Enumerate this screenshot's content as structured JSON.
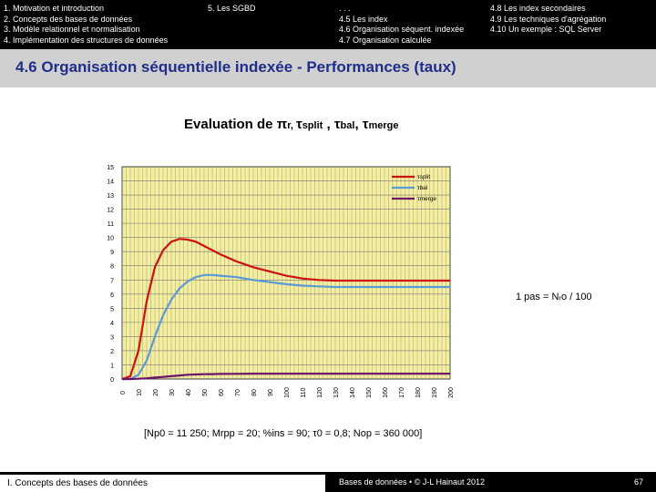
{
  "nav": {
    "left_items": [
      "1. Motivation et introduction",
      "2. Concepts des bases de données",
      "3. Modèle relationnel et normalisation",
      "4. Implémentation des structures de données"
    ],
    "sgbd_item": "5. Les SGBD",
    "right_col1": [
      ". . .",
      "4.5 Les index",
      "4.6 Organisation séquent. indexée",
      "4.7 Organisation calculée"
    ],
    "right_col2": [
      "4.8 Les index secondaires",
      "4.9 Les techniques d'agrégation",
      "4.10 Un exemple : SQL Server"
    ]
  },
  "page_title": "4.6 Organisation séquentielle indexée - Performances (taux)",
  "chart_title": {
    "prefix": "Evaluation de ",
    "pi": "π",
    "r": "r, ",
    "tau1": "τ",
    "split": "split",
    "comma2": " , ",
    "tau2": "τ",
    "bal": "bal",
    "comma3": ", ",
    "tau3": "τ",
    "merge": "merge"
  },
  "step_note": "1 pas = Nᵣo / 100",
  "params": "[Np0 = 11 250; Mrpp = 20; %ins = 90; τ0 = 0,8; Nop = 360 000]",
  "footer": {
    "left": "I. Concepts des bases de données",
    "middle": "Bases de données • © J-L Hainaut 2012",
    "page": "67"
  },
  "chart_data": {
    "type": "line",
    "x": [
      0,
      5,
      10,
      15,
      20,
      25,
      30,
      35,
      40,
      45,
      50,
      55,
      60,
      70,
      80,
      90,
      100,
      110,
      120,
      130,
      140,
      150,
      160,
      170,
      180,
      190,
      200
    ],
    "ylim": [
      0,
      15
    ],
    "xlim": [
      0,
      200
    ],
    "grid": true,
    "legend_position": "top-right",
    "x_ticks": [
      0,
      10,
      20,
      30,
      40,
      50,
      60,
      70,
      80,
      90,
      100,
      110,
      120,
      130,
      140,
      150,
      160,
      170,
      180,
      190,
      200
    ],
    "y_ticks": [
      0,
      1,
      2,
      3,
      4,
      5,
      6,
      7,
      8,
      9,
      10,
      11,
      12,
      13,
      14,
      15
    ],
    "series": [
      {
        "name": "τsplit",
        "color": "#cc1111",
        "values": [
          0,
          0.2,
          2.0,
          5.5,
          7.9,
          9.1,
          9.7,
          9.9,
          9.85,
          9.7,
          9.4,
          9.1,
          8.8,
          8.3,
          7.9,
          7.6,
          7.3,
          7.1,
          7.0,
          6.95,
          6.95,
          6.95,
          6.95,
          6.95,
          6.95,
          6.95,
          6.95
        ]
      },
      {
        "name": "τbal",
        "color": "#5a9ad6",
        "values": [
          0,
          0,
          0.3,
          1.3,
          3.0,
          4.5,
          5.6,
          6.4,
          6.9,
          7.2,
          7.35,
          7.35,
          7.3,
          7.2,
          7.0,
          6.85,
          6.7,
          6.6,
          6.55,
          6.5,
          6.5,
          6.5,
          6.5,
          6.5,
          6.5,
          6.5,
          6.5
        ]
      },
      {
        "name": "τmerge",
        "color": "#6b1468",
        "values": [
          0,
          0,
          0.02,
          0.05,
          0.1,
          0.15,
          0.2,
          0.25,
          0.3,
          0.32,
          0.34,
          0.35,
          0.36,
          0.37,
          0.38,
          0.38,
          0.38,
          0.38,
          0.38,
          0.38,
          0.38,
          0.38,
          0.38,
          0.38,
          0.38,
          0.38,
          0.38
        ]
      }
    ]
  }
}
